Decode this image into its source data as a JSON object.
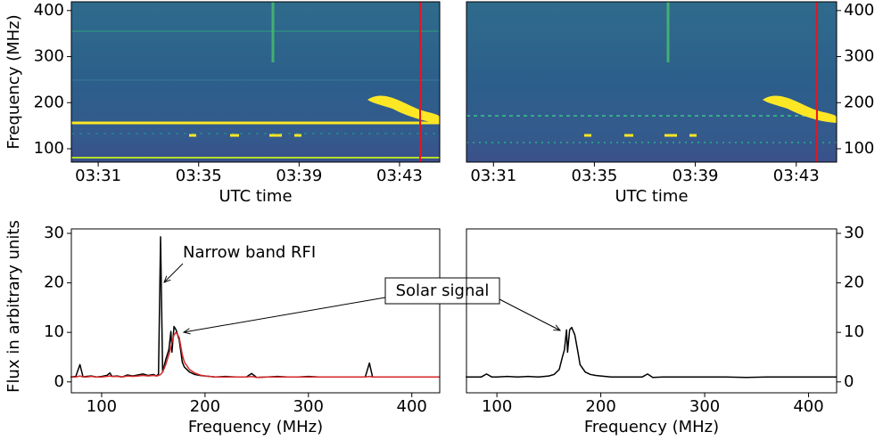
{
  "chart_data": [
    {
      "type": "spectrogram",
      "xlabel": "UTC time",
      "ylabel": "Frequency (MHz)",
      "xlim": [
        209.93,
        224.6
      ],
      "xticks": [
        {
          "value": 211,
          "label": "03:31"
        },
        {
          "value": 215,
          "label": "03:35"
        },
        {
          "value": 219,
          "label": "03:39"
        },
        {
          "value": 223,
          "label": "03:43"
        }
      ],
      "ylim": [
        71,
        419
      ],
      "yticks": [
        100,
        200,
        300,
        400
      ],
      "y_side": "left",
      "vline": 223.82,
      "vline_color": "#e8141c"
    },
    {
      "type": "spectrogram",
      "xlabel": "UTC time",
      "xlim": [
        209.93,
        224.6
      ],
      "xticks": [
        {
          "value": 211,
          "label": "03:31"
        },
        {
          "value": 215,
          "label": "03:35"
        },
        {
          "value": 219,
          "label": "03:39"
        },
        {
          "value": 223,
          "label": "03:43"
        }
      ],
      "ylim": [
        71,
        419
      ],
      "yticks": [
        100,
        200,
        300,
        400
      ],
      "y_side": "right",
      "vline": 223.82,
      "vline_color": "#e8141c"
    },
    {
      "type": "line",
      "xlabel": "Frequency (MHz)",
      "ylabel": "Flux in arbitrary units",
      "xlim": [
        70.7,
        427
      ],
      "xticks": [
        100,
        200,
        300,
        400
      ],
      "ylim": [
        -2.2,
        30.9
      ],
      "yticks": [
        0,
        10,
        20,
        30
      ],
      "y_side": "left",
      "annotations": [
        "Narrow band RFI",
        "Solar signal"
      ],
      "x": [
        70,
        75,
        79,
        82,
        85,
        90,
        95,
        100,
        105,
        108,
        110,
        115,
        120,
        125,
        130,
        135,
        140,
        145,
        150,
        153,
        155,
        157,
        159,
        162,
        165,
        167,
        168,
        170,
        172,
        175,
        178,
        180,
        185,
        190,
        195,
        200,
        210,
        220,
        230,
        240,
        245,
        250,
        260,
        270,
        280,
        290,
        300,
        310,
        320,
        330,
        340,
        350,
        355,
        359,
        362,
        370,
        380,
        390,
        400,
        410,
        420,
        427
      ],
      "series": [
        {
          "color": "#000000",
          "values": [
            1.0,
            1.1,
            3.5,
            1.0,
            1.1,
            1.2,
            1.0,
            1.1,
            1.3,
            1.8,
            1.1,
            1.2,
            1.0,
            1.4,
            1.2,
            1.4,
            1.6,
            1.3,
            1.5,
            1.2,
            1.6,
            29.3,
            2.0,
            4.5,
            6.5,
            10.2,
            6.0,
            11.2,
            10.5,
            8.5,
            4.0,
            3.0,
            2.0,
            1.5,
            1.3,
            1.2,
            1.0,
            1.1,
            1.0,
            1.0,
            1.7,
            0.9,
            1.0,
            1.1,
            1.0,
            1.0,
            1.1,
            1.0,
            1.0,
            1.0,
            1.0,
            1.0,
            1.0,
            3.8,
            1.0,
            1.0,
            1.0,
            1.0,
            1.0,
            1.0,
            1.0,
            1.0
          ]
        },
        {
          "color": "#d62728",
          "values": [
            1.0,
            1.0,
            1.2,
            1.0,
            1.0,
            1.1,
            1.0,
            1.0,
            1.1,
            1.2,
            1.1,
            1.1,
            1.0,
            1.2,
            1.1,
            1.2,
            1.3,
            1.2,
            1.3,
            1.2,
            1.3,
            1.5,
            2.0,
            3.5,
            5.5,
            7.0,
            8.0,
            9.5,
            10.0,
            9.0,
            5.5,
            4.0,
            2.5,
            1.8,
            1.4,
            1.2,
            1.0,
            1.0,
            1.0,
            1.0,
            1.1,
            0.9,
            1.0,
            1.0,
            1.0,
            1.0,
            1.0,
            1.0,
            1.0,
            1.0,
            1.0,
            1.0,
            1.0,
            1.1,
            1.0,
            1.0,
            1.0,
            1.0,
            1.0,
            1.0,
            1.0,
            1.0
          ]
        }
      ]
    },
    {
      "type": "line",
      "xlabel": "Frequency (MHz)",
      "xlim": [
        70.7,
        427
      ],
      "xticks": [
        100,
        200,
        300,
        400
      ],
      "ylim": [
        -2.2,
        30.9
      ],
      "yticks": [
        0,
        10,
        20,
        30
      ],
      "y_side": "right",
      "x": [
        70,
        80,
        85,
        90,
        95,
        100,
        110,
        120,
        130,
        140,
        150,
        155,
        160,
        163,
        165,
        167,
        168,
        170,
        172,
        175,
        178,
        180,
        185,
        190,
        195,
        200,
        210,
        220,
        230,
        240,
        245,
        250,
        260,
        280,
        300,
        320,
        340,
        360,
        380,
        400,
        427
      ],
      "series": [
        {
          "color": "#000000",
          "values": [
            1,
            1,
            1,
            1.6,
            1,
            1,
            1.1,
            1,
            1.1,
            1,
            1.2,
            1.5,
            2.5,
            5,
            6.5,
            10.5,
            6,
            10.5,
            11,
            9.5,
            6,
            3.5,
            2,
            1.5,
            1.3,
            1.2,
            1,
            1,
            1,
            1,
            1.6,
            0.9,
            1,
            1,
            1,
            1,
            0.9,
            1,
            1,
            1,
            1
          ]
        }
      ]
    }
  ]
}
